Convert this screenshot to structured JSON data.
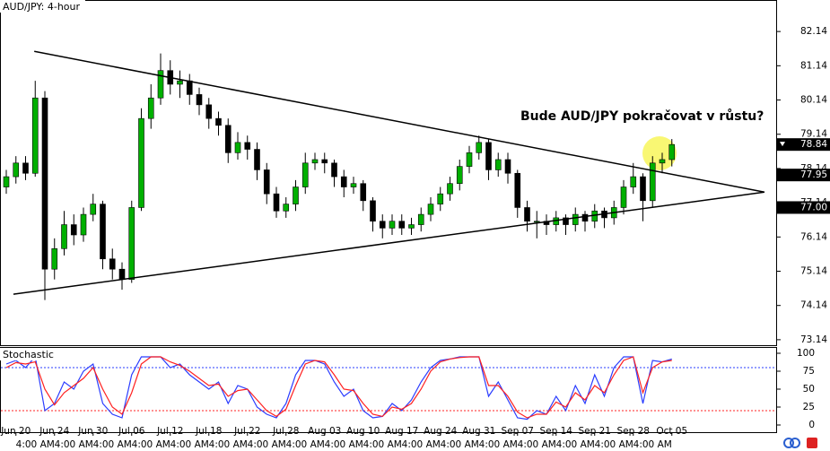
{
  "chart_data": {
    "type": "candlestick",
    "title": "AUD/JPY: 4-hour",
    "annotation": "Bude AUD/JPY pokračovat v růstu?",
    "categories": [
      null,
      "Jun 20",
      null,
      null,
      null,
      "Jun 24",
      null,
      null,
      null,
      "Jun 30",
      null,
      null,
      null,
      "Jul 06",
      null,
      null,
      null,
      "Jul 12",
      null,
      null,
      null,
      "Jul 18",
      null,
      null,
      null,
      "Jul 22",
      null,
      null,
      null,
      "Jul 28",
      null,
      null,
      null,
      "Aug 03",
      null,
      null,
      null,
      "Aug 10",
      null,
      null,
      null,
      "Aug 17",
      null,
      null,
      null,
      "Aug 24",
      null,
      null,
      null,
      "Aug 31",
      null,
      null,
      null,
      "Sep 07",
      null,
      null,
      null,
      "Sep 14",
      null,
      null,
      null,
      "Sep 21",
      null,
      null,
      null,
      "Sep 28",
      null,
      null,
      null,
      "Oct 05"
    ],
    "categories2": [
      null,
      null,
      null,
      "4:00 AM",
      null,
      null,
      null,
      "4:00 AM",
      null,
      null,
      null,
      "4:00 AM",
      null,
      null,
      null,
      "4:00 AM",
      null,
      null,
      null,
      "4:00 AM",
      null,
      null,
      null,
      "4:00 AM",
      null,
      null,
      null,
      "4:00 AM",
      null,
      null,
      null,
      "4:00 AM",
      null,
      null,
      null,
      "4:00 AM",
      null,
      null,
      null,
      "4:00 AM",
      null,
      null,
      null,
      "4:00 AM",
      null,
      null,
      null,
      "4:00 AM",
      null,
      null,
      null,
      "4:00 AM",
      null,
      null,
      null,
      "4:00 AM",
      null,
      null,
      null,
      "4:00 AM",
      null,
      null,
      null,
      "4:00 AM",
      null,
      null,
      null,
      "4:00 AM",
      null,
      null
    ],
    "open": [
      77.6,
      77.9,
      78.3,
      78.0,
      80.2,
      75.2,
      75.8,
      76.5,
      76.2,
      76.8,
      77.1,
      75.5,
      75.2,
      74.9,
      77.0,
      79.6,
      80.2,
      81.0,
      80.6,
      80.7,
      80.3,
      80.0,
      79.6,
      79.4,
      78.6,
      78.9,
      78.7,
      78.1,
      77.4,
      76.9,
      77.1,
      77.6,
      78.3,
      78.4,
      78.3,
      77.9,
      77.6,
      77.7,
      77.2,
      76.6,
      76.4,
      76.6,
      76.4,
      76.5,
      76.8,
      77.1,
      77.4,
      77.7,
      78.2,
      78.6,
      78.9,
      78.1,
      78.4,
      78.0,
      77.0,
      76.6,
      76.6,
      76.5,
      76.7,
      76.5,
      76.8,
      76.6,
      76.9,
      76.7,
      77.0,
      77.6,
      77.9,
      77.2,
      78.3,
      78.4
    ],
    "high": [
      78.1,
      78.5,
      78.5,
      80.7,
      80.4,
      76.1,
      76.9,
      76.8,
      77.0,
      77.4,
      77.2,
      75.8,
      75.4,
      77.2,
      79.9,
      80.6,
      81.5,
      81.3,
      81.0,
      80.9,
      80.5,
      80.2,
      79.8,
      79.6,
      79.2,
      79.1,
      78.9,
      78.3,
      77.6,
      77.3,
      77.8,
      78.6,
      78.6,
      78.6,
      78.4,
      78.1,
      77.9,
      77.8,
      77.3,
      76.8,
      76.8,
      76.8,
      76.7,
      77.0,
      77.3,
      77.6,
      77.9,
      78.4,
      78.8,
      79.1,
      79.0,
      78.6,
      78.6,
      78.1,
      77.2,
      76.9,
      76.8,
      76.9,
      76.8,
      77.0,
      76.9,
      77.1,
      77.0,
      77.2,
      77.8,
      78.3,
      78.0,
      78.5,
      78.6,
      79.0
    ],
    "low": [
      77.4,
      77.7,
      77.8,
      77.9,
      74.3,
      74.9,
      75.6,
      75.9,
      76.0,
      76.6,
      75.2,
      74.9,
      74.6,
      74.8,
      76.9,
      79.3,
      80.0,
      80.3,
      80.2,
      80.0,
      79.7,
      79.3,
      79.1,
      78.3,
      78.4,
      78.4,
      77.8,
      77.1,
      76.7,
      76.7,
      76.9,
      77.4,
      78.1,
      78.0,
      77.6,
      77.3,
      77.4,
      76.9,
      76.3,
      76.1,
      76.2,
      76.2,
      76.2,
      76.3,
      76.6,
      76.9,
      77.2,
      77.5,
      78.0,
      78.4,
      77.8,
      77.9,
      77.7,
      76.7,
      76.3,
      76.1,
      76.2,
      76.3,
      76.2,
      76.3,
      76.3,
      76.4,
      76.4,
      76.5,
      76.8,
      77.4,
      76.6,
      77.0,
      78.0,
      78.2
    ],
    "close": [
      77.9,
      78.3,
      78.0,
      80.2,
      75.2,
      75.8,
      76.5,
      76.2,
      76.8,
      77.1,
      75.5,
      75.2,
      74.9,
      77.0,
      79.6,
      80.2,
      81.0,
      80.6,
      80.7,
      80.3,
      80.0,
      79.6,
      79.4,
      78.6,
      78.9,
      78.7,
      78.1,
      77.4,
      76.9,
      77.1,
      77.6,
      78.3,
      78.4,
      78.3,
      77.9,
      77.6,
      77.7,
      77.2,
      76.6,
      76.4,
      76.6,
      76.4,
      76.5,
      76.8,
      77.1,
      77.4,
      77.7,
      78.2,
      78.6,
      78.9,
      78.1,
      78.4,
      78.0,
      77.0,
      76.6,
      76.6,
      76.5,
      76.7,
      76.5,
      76.8,
      76.6,
      76.9,
      76.7,
      77.0,
      77.6,
      77.9,
      77.2,
      78.3,
      78.4,
      78.84
    ],
    "up_color": "#00b000",
    "down_color": "#000000",
    "ylim": [
      72.98,
      83.06
    ],
    "yticks": [
      82.14,
      81.14,
      80.14,
      79.14,
      78.14,
      77.14,
      76.14,
      75.14,
      74.14,
      73.14
    ],
    "price_labels": [
      78.84,
      77.95,
      {
        "value": 77,
        "label": "77.00"
      }
    ],
    "trendlines": [
      {
        "x": [
          2.9,
          78.6
        ],
        "y": [
          81.56,
          77.45
        ]
      },
      {
        "x": [
          0.74,
          78.6
        ],
        "y": [
          74.47,
          77.45
        ]
      }
    ],
    "stochastic": {
      "title": "Stochastic",
      "ylim": [
        -10,
        108.75
      ],
      "yticks": [
        0,
        25,
        50,
        75,
        100
      ],
      "levels": [
        80,
        20
      ],
      "series": [
        {
          "color": "#2a3cff",
          "values": [
            85,
            90,
            80,
            95,
            20,
            30,
            60,
            50,
            75,
            85,
            30,
            15,
            10,
            70,
            95,
            95,
            95,
            80,
            85,
            70,
            60,
            50,
            60,
            30,
            55,
            50,
            25,
            15,
            10,
            30,
            70,
            90,
            90,
            85,
            60,
            40,
            50,
            20,
            10,
            12,
            30,
            20,
            35,
            60,
            80,
            90,
            92,
            95,
            95,
            95,
            40,
            60,
            35,
            10,
            8,
            20,
            15,
            40,
            20,
            55,
            30,
            70,
            40,
            80,
            95,
            95,
            30,
            90,
            88,
            92
          ]
        },
        {
          "color": "#ff2020",
          "values": [
            80,
            87,
            85,
            88,
            50,
            28,
            45,
            55,
            65,
            80,
            50,
            25,
            15,
            45,
            85,
            95,
            95,
            88,
            83,
            75,
            65,
            55,
            57,
            40,
            48,
            50,
            35,
            20,
            12,
            22,
            55,
            85,
            90,
            88,
            70,
            50,
            48,
            30,
            15,
            12,
            25,
            22,
            30,
            50,
            75,
            88,
            92,
            94,
            95,
            95,
            55,
            55,
            40,
            18,
            10,
            15,
            15,
            32,
            25,
            45,
            35,
            55,
            45,
            70,
            90,
            95,
            45,
            80,
            88,
            90
          ]
        }
      ]
    }
  }
}
